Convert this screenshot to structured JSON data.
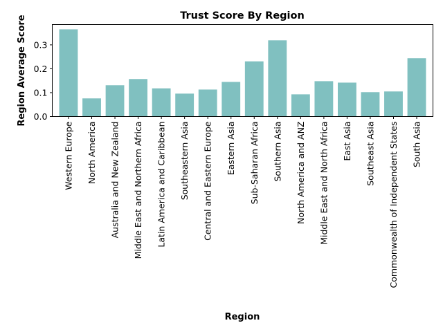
{
  "chart_data": {
    "type": "bar",
    "title": "Trust Score By Region",
    "xlabel": "Region",
    "ylabel": "Region Average Score",
    "categories": [
      "Western Europe",
      "North America",
      "Australia and New Zealand",
      "Middle East and Northern Africa",
      "Latin America and Caribbean",
      "Southeastern Asia",
      "Central and Eastern Europe",
      "Eastern Asia",
      "Sub-Saharan Africa",
      "Southern Asia",
      "North America and ANZ",
      "Middle East and North Africa",
      "East Asia",
      "Southeast Asia",
      "Commonwealth of Independent States",
      "South Asia"
    ],
    "values": [
      0.365,
      0.076,
      0.131,
      0.157,
      0.118,
      0.096,
      0.113,
      0.145,
      0.231,
      0.319,
      0.093,
      0.148,
      0.142,
      0.102,
      0.105,
      0.244
    ],
    "ylim": [
      0,
      0.385
    ],
    "yticks": [
      0.0,
      0.1,
      0.2,
      0.3
    ],
    "ytick_labels": [
      "0.0",
      "0.1",
      "0.2",
      "0.3"
    ],
    "bar_color": "#80c0c0",
    "grid": false,
    "legend": "none"
  }
}
